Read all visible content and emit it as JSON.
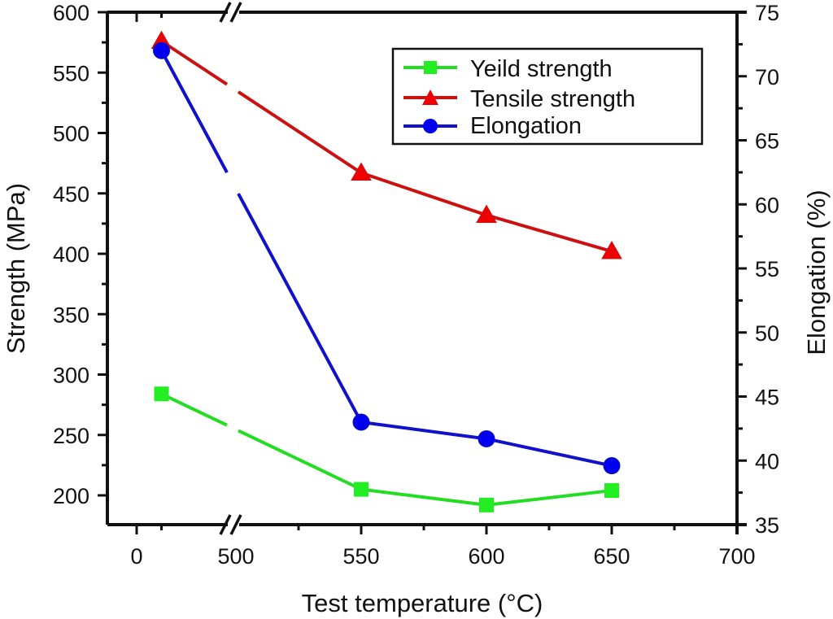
{
  "chart_data": {
    "type": "line",
    "title": "",
    "xlabel": "Test temperature (°C)",
    "ylabel": "Strength (MPa)",
    "y2label": "Elongation (%)",
    "x_axis_break": {
      "between": [
        0,
        500
      ],
      "style": "double-slash"
    },
    "x_ticks": [
      0,
      500,
      550,
      600,
      650,
      700
    ],
    "x_tick_labels": [
      "0",
      "500",
      "550",
      "600",
      "650",
      "700"
    ],
    "x": [
      25,
      550,
      600,
      650
    ],
    "ylim": [
      200,
      600
    ],
    "y_ticks": [
      200,
      250,
      300,
      350,
      400,
      450,
      500,
      550,
      600
    ],
    "y_tick_labels": [
      "200",
      "250",
      "300",
      "350",
      "400",
      "450",
      "500",
      "550",
      "600"
    ],
    "y2lim": [
      35,
      75
    ],
    "y2_ticks": [
      35,
      40,
      45,
      50,
      55,
      60,
      65,
      70,
      75
    ],
    "y2_tick_labels": [
      "35",
      "40",
      "45",
      "50",
      "55",
      "60",
      "65",
      "70",
      "75"
    ],
    "grid": false,
    "legend_position": "top-right",
    "series": [
      {
        "name": "Yeild strength",
        "axis": "left",
        "marker": "square",
        "color": "#22dd22",
        "values": [
          284,
          205,
          192,
          204
        ]
      },
      {
        "name": "Tensile strength",
        "axis": "left",
        "marker": "triangle",
        "color": "#cc1111",
        "values": [
          576,
          467,
          432,
          402
        ]
      },
      {
        "name": "Elongation",
        "axis": "right",
        "marker": "circle",
        "color": "#1111cc",
        "values": [
          72.0,
          43.0,
          41.7,
          39.6
        ]
      }
    ]
  }
}
